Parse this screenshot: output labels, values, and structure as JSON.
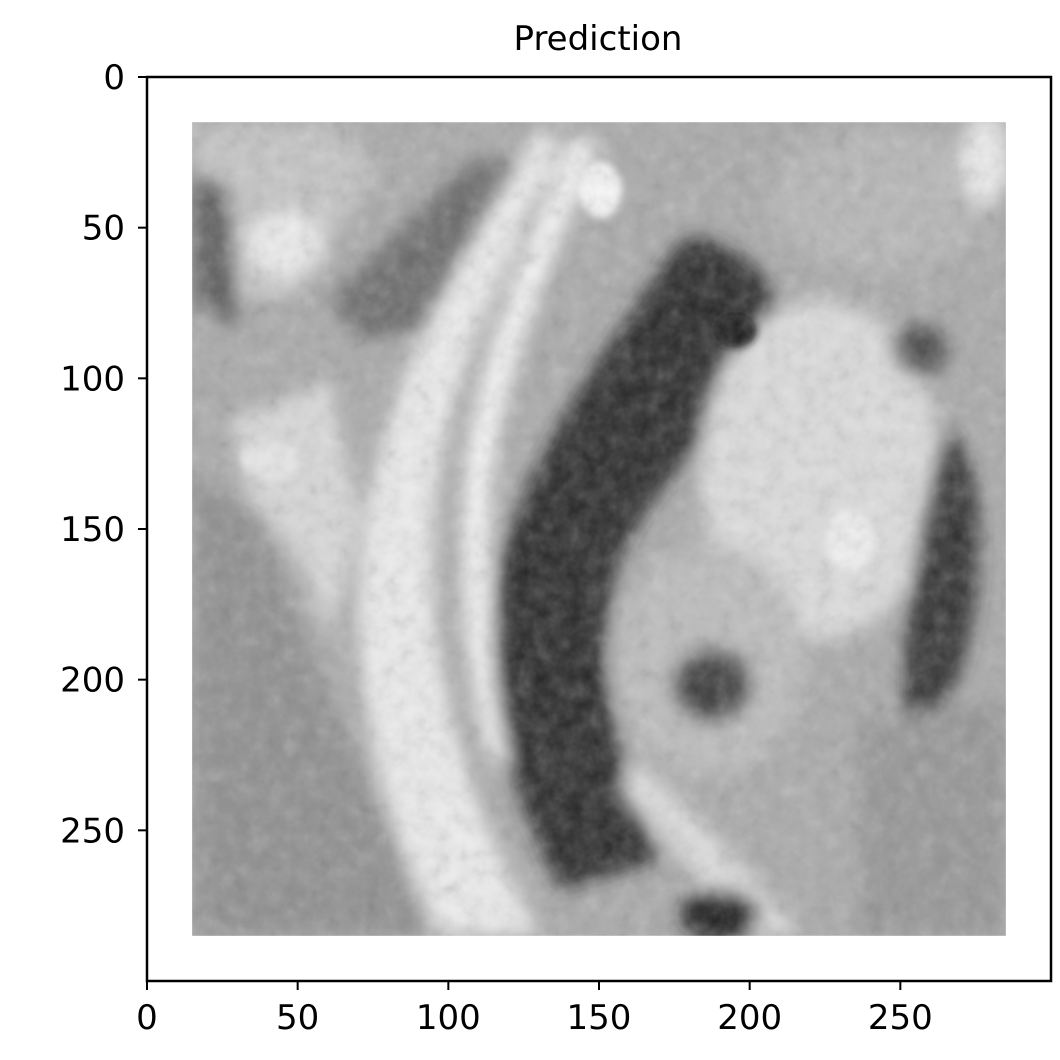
{
  "chart_data": {
    "type": "heatmap",
    "title": "Prediction",
    "xlabel": "",
    "ylabel": "",
    "colormap": "gray",
    "xlim": [
      0,
      300
    ],
    "ylim": [
      300,
      0
    ],
    "image_extent": {
      "x": [
        15,
        285
      ],
      "y": [
        15,
        285
      ]
    },
    "xticks": [
      0,
      50,
      100,
      150,
      200,
      250
    ],
    "yticks": [
      0,
      50,
      100,
      150,
      200,
      250
    ],
    "xtick_labels": [
      "0",
      "50",
      "100",
      "150",
      "200",
      "250"
    ],
    "ytick_labels": [
      "0",
      "50",
      "100",
      "150",
      "200",
      "250"
    ],
    "grid": false,
    "legend": "none",
    "colors": {
      "background": "#ffffff",
      "axes": "#000000",
      "dark": "#121212",
      "light": "#f4f4f4"
    }
  }
}
